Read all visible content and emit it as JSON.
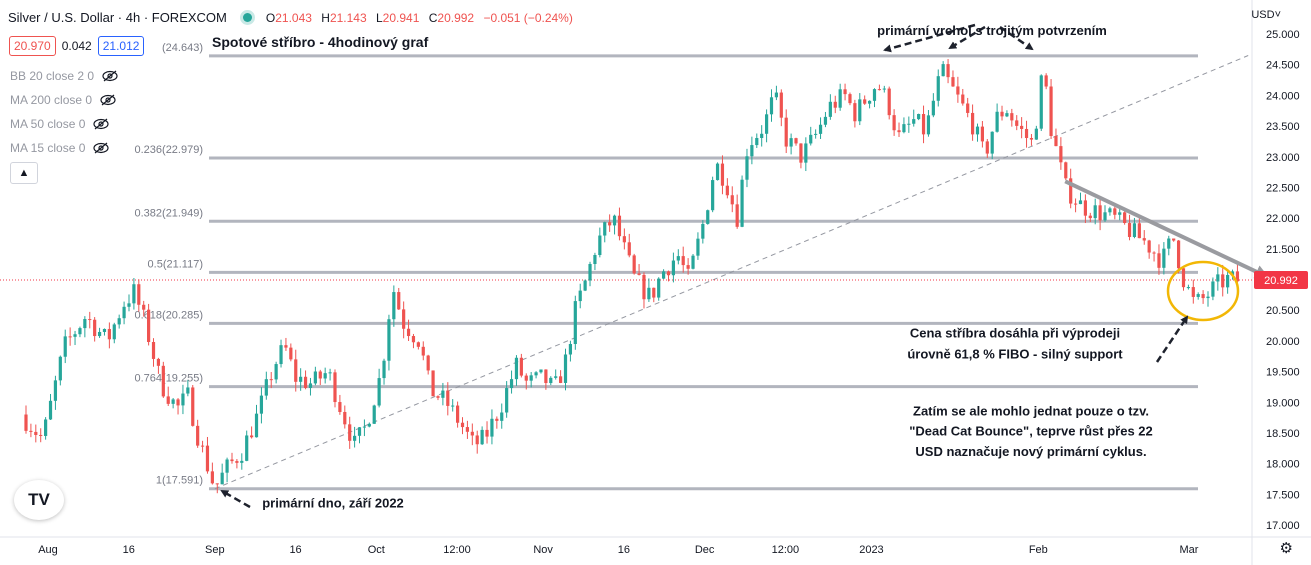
{
  "header": {
    "symbol": "Silver / U.S. Dollar · 4h · FOREXCOM",
    "ohlc": {
      "o_label": "O",
      "o": "21.043",
      "h_label": "H",
      "h": "21.143",
      "l_label": "L",
      "l": "20.941",
      "c_label": "C",
      "c": "20.992",
      "change": "−0.051 (−0.24%)"
    },
    "bid": "20.970",
    "spread": "0.042",
    "ask": "21.012"
  },
  "indicators": [
    {
      "label": "BB 20 close 2 0"
    },
    {
      "label": "MA 200 close 0"
    },
    {
      "label": "MA 50 close 0"
    },
    {
      "label": "MA 15 close 0"
    }
  ],
  "collapse_icon": "chevron-up-icon",
  "currency_selector": "USD˅",
  "tv_logo": "TV",
  "settings_icon": "gear-icon",
  "colors": {
    "up": "#26a69a",
    "down": "#ef5350",
    "fib": "#b2b5be",
    "trendline": "#9598a1",
    "circle": "#f2b705",
    "price_label": "#f23645"
  },
  "chart_data": {
    "type": "candlestick",
    "title": "Spotové stříbro - 4hodinový graf",
    "ylim": [
      16.9,
      25.1
    ],
    "y_ticks": [
      "25.000",
      "24.500",
      "24.000",
      "23.500",
      "23.000",
      "22.500",
      "22.000",
      "21.500",
      "21.000",
      "20.500",
      "20.000",
      "19.500",
      "19.000",
      "18.500",
      "18.000",
      "17.500",
      "17.000"
    ],
    "y_tick_values": [
      25.0,
      24.5,
      24.0,
      23.5,
      23.0,
      22.5,
      22.0,
      21.5,
      21.0,
      20.5,
      20.0,
      19.5,
      19.0,
      18.5,
      18.0,
      17.5,
      17.0
    ],
    "x_ticks": [
      "Aug",
      "16",
      "Sep",
      "16",
      "Oct",
      "12:00",
      "Nov",
      "16",
      "Dec",
      "12:00",
      "2023",
      "Feb",
      "Mar"
    ],
    "x_tick_dates": [
      "2022-08-01",
      "2022-08-16",
      "2022-09-01",
      "2022-09-16",
      "2022-10-01",
      "2022-10-16",
      "2022-11-01",
      "2022-11-16",
      "2022-12-01",
      "2022-12-16",
      "2023-01-01",
      "2023-02-01",
      "2023-03-01"
    ],
    "last_price": 20.992,
    "last_price_label": "20.992",
    "fib_levels": [
      {
        "label": "(24.643)",
        "value": 24.643
      },
      {
        "label": "0.236(22.979)",
        "value": 22.979
      },
      {
        "label": "0.382(21.949)",
        "value": 21.949
      },
      {
        "label": "0.5(21.117)",
        "value": 21.117
      },
      {
        "label": "0.618(20.285)",
        "value": 20.285
      },
      {
        "label": "0.764(19.255)",
        "value": 19.255
      },
      {
        "label": "1(17.591)",
        "value": 17.591
      }
    ],
    "price_path": [
      [
        "2022-07-27",
        18.8
      ],
      [
        "2022-07-31",
        18.4
      ],
      [
        "2022-08-04",
        19.9
      ],
      [
        "2022-08-08",
        20.4
      ],
      [
        "2022-08-12",
        20.0
      ],
      [
        "2022-08-15",
        20.6
      ],
      [
        "2022-08-17",
        20.8
      ],
      [
        "2022-08-19",
        20.3
      ],
      [
        "2022-08-22",
        19.3
      ],
      [
        "2022-08-25",
        18.9
      ],
      [
        "2022-08-27",
        19.1
      ],
      [
        "2022-08-29",
        18.4
      ],
      [
        "2022-09-01",
        17.6
      ],
      [
        "2022-09-03",
        17.9
      ],
      [
        "2022-09-06",
        18.2
      ],
      [
        "2022-09-09",
        18.8
      ],
      [
        "2022-09-12",
        19.6
      ],
      [
        "2022-09-14",
        19.9
      ],
      [
        "2022-09-16",
        19.4
      ],
      [
        "2022-09-19",
        19.3
      ],
      [
        "2022-09-22",
        19.5
      ],
      [
        "2022-09-24",
        19.0
      ],
      [
        "2022-09-27",
        18.3
      ],
      [
        "2022-09-29",
        18.6
      ],
      [
        "2022-10-02",
        19.5
      ],
      [
        "2022-10-04",
        20.9
      ],
      [
        "2022-10-06",
        20.3
      ],
      [
        "2022-10-09",
        20.0
      ],
      [
        "2022-10-11",
        19.2
      ],
      [
        "2022-10-14",
        19.0
      ],
      [
        "2022-10-17",
        18.6
      ],
      [
        "2022-10-19",
        18.3
      ],
      [
        "2022-10-21",
        18.4
      ],
      [
        "2022-10-24",
        18.9
      ],
      [
        "2022-10-27",
        19.6
      ],
      [
        "2022-10-29",
        19.3
      ],
      [
        "2022-11-01",
        19.4
      ],
      [
        "2022-11-03",
        19.2
      ],
      [
        "2022-11-05",
        19.6
      ],
      [
        "2022-11-07",
        20.5
      ],
      [
        "2022-11-09",
        21.0
      ],
      [
        "2022-11-11",
        21.6
      ],
      [
        "2022-11-14",
        22.0
      ],
      [
        "2022-11-16",
        21.5
      ],
      [
        "2022-11-18",
        21.0
      ],
      [
        "2022-11-21",
        20.7
      ],
      [
        "2022-11-23",
        21.1
      ],
      [
        "2022-11-26",
        21.4
      ],
      [
        "2022-11-28",
        21.0
      ],
      [
        "2022-12-01",
        22.0
      ],
      [
        "2022-12-03",
        22.9
      ],
      [
        "2022-12-05",
        22.6
      ],
      [
        "2022-12-07",
        22.0
      ],
      [
        "2022-12-09",
        23.2
      ],
      [
        "2022-12-12",
        23.5
      ],
      [
        "2022-12-14",
        24.0
      ],
      [
        "2022-12-16",
        23.3
      ],
      [
        "2022-12-19",
        23.0
      ],
      [
        "2022-12-22",
        23.4
      ],
      [
        "2022-12-24",
        23.8
      ],
      [
        "2022-12-27",
        24.0
      ],
      [
        "2022-12-29",
        23.7
      ],
      [
        "2023-01-02",
        24.2
      ],
      [
        "2023-01-04",
        23.9
      ],
      [
        "2023-01-06",
        23.3
      ],
      [
        "2023-01-09",
        23.6
      ],
      [
        "2023-01-11",
        23.4
      ],
      [
        "2023-01-14",
        24.4
      ],
      [
        "2023-01-16",
        24.1
      ],
      [
        "2023-01-18",
        23.8
      ],
      [
        "2023-01-20",
        23.5
      ],
      [
        "2023-01-22",
        23.0
      ],
      [
        "2023-01-24",
        23.6
      ],
      [
        "2023-01-26",
        23.8
      ],
      [
        "2023-01-28",
        23.5
      ],
      [
        "2023-01-31",
        23.2
      ],
      [
        "2023-02-02",
        24.5
      ],
      [
        "2023-02-03",
        23.6
      ],
      [
        "2023-02-06",
        22.5
      ],
      [
        "2023-02-09",
        22.2
      ],
      [
        "2023-02-12",
        22.1
      ],
      [
        "2023-02-15",
        22.0
      ],
      [
        "2023-02-18",
        21.8
      ],
      [
        "2023-02-21",
        21.6
      ],
      [
        "2023-02-24",
        21.3
      ],
      [
        "2023-02-26",
        21.7
      ],
      [
        "2023-02-28",
        21.0
      ],
      [
        "2023-03-02",
        20.6
      ],
      [
        "2023-03-04",
        20.7
      ],
      [
        "2023-03-06",
        20.9
      ],
      [
        "2023-03-08",
        21.0
      ],
      [
        "2023-03-10",
        20.99
      ]
    ],
    "trendline": [
      [
        "2022-09-01",
        17.59
      ],
      [
        "2023-03-12",
        24.65
      ]
    ],
    "resistance_line": [
      [
        "2023-02-06",
        22.6
      ],
      [
        "2023-03-13",
        20.99
      ]
    ],
    "annotations": [
      {
        "text": "primární vrchol s trojitým potvrzením",
        "date": "2023-01-14",
        "price": 25.05
      },
      {
        "text": "Cena stříbra dosáhla při výprodeji",
        "date": "2023-02-18",
        "price": 20.12
      },
      {
        "text": "úrovně 61,8 % FIBO - silný support",
        "date": "2023-02-18",
        "price": 19.78
      },
      {
        "text": "Zatím se ale mohlo jednat pouze o tzv.",
        "date": "2023-02-23",
        "price": 18.85
      },
      {
        "text": "\"Dead Cat Bounce\", teprve růst přes 22",
        "date": "2023-02-23",
        "price": 18.52
      },
      {
        "text": "USD naznačuje nový primární cyklus.",
        "date": "2023-02-23",
        "price": 18.19
      },
      {
        "text": "primární dno, září 2022",
        "date": "2022-09-18",
        "price": 17.35
      }
    ]
  }
}
